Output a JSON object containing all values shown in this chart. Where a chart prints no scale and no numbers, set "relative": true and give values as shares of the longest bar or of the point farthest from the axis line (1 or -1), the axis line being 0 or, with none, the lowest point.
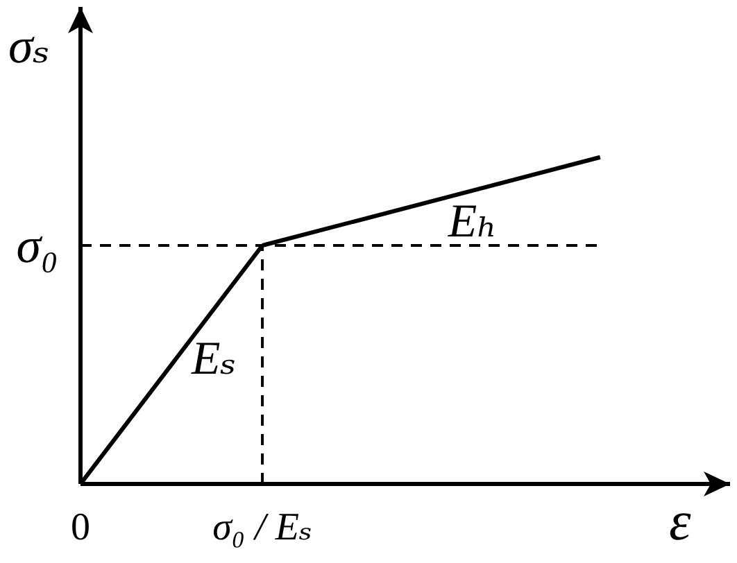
{
  "chart_data": {
    "type": "line",
    "relative": true,
    "xlabel": "ε",
    "ylabel": "σₛ",
    "marker": "none",
    "categories": [
      "0",
      null,
      null,
      null,
      null,
      null,
      null,
      "σ₀ / Eₛ",
      null,
      null,
      null,
      null,
      null,
      null,
      null,
      null,
      null,
      null,
      null,
      null,
      null
    ],
    "series": [
      {
        "name": "Eₛ",
        "color": "#000000",
        "values": [
          0,
          null,
          null,
          null,
          null,
          null,
          null,
          0.73,
          null,
          null,
          null,
          null,
          null,
          null,
          null,
          null,
          null,
          null,
          null,
          null,
          null
        ]
      },
      {
        "name": "Eₕ",
        "color": "#000000",
        "values": [
          null,
          null,
          null,
          null,
          null,
          null,
          null,
          0.73,
          null,
          null,
          null,
          null,
          null,
          null,
          null,
          null,
          null,
          null,
          null,
          null,
          1
        ]
      },
      {
        "name": "σ₀",
        "color": "#000000",
        "line_style": "dashed",
        "values": [
          0.73,
          null,
          null,
          null,
          null,
          null,
          null,
          null,
          null,
          null,
          null,
          null,
          null,
          null,
          null,
          null,
          null,
          null,
          null,
          null,
          0.73
        ]
      }
    ],
    "ref_lines": [
      {
        "axis": "x",
        "value": "σ₀ / Eₛ",
        "color": "#000000",
        "line_style": "dashed"
      }
    ]
  }
}
